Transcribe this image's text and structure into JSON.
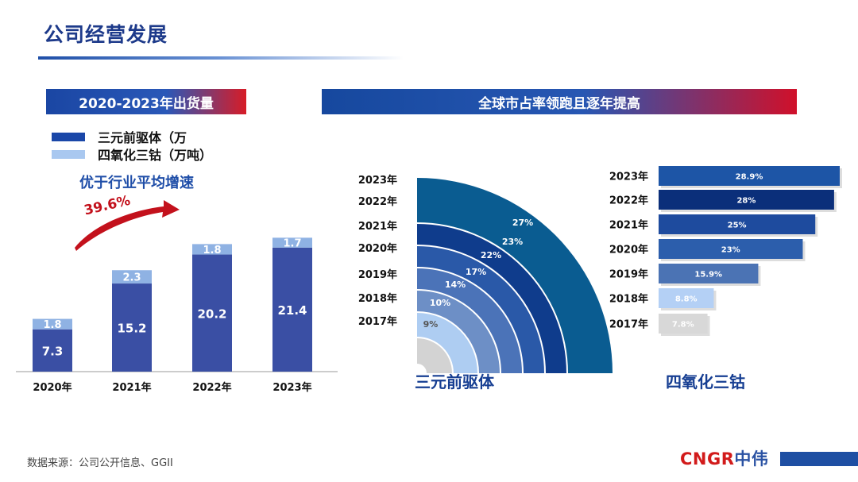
{
  "page": {
    "title": "公司经营发展",
    "source": "数据来源：公司公开信息、GGII",
    "logo_text": "CNGR",
    "logo_zh": "中伟"
  },
  "left_panel": {
    "banner": "2020-2023年出货量",
    "legend": [
      "三元前驱体（万",
      "四氧化三钴（万吨）"
    ],
    "growth_note": "优于行业平均增速",
    "growth_rate": "39.6%"
  },
  "right_panel": {
    "banner": "全球市占率领跑且逐年提高",
    "label_ncm": "三元前驱体",
    "label_co": "四氧化三钴"
  },
  "colors": {
    "ncm": "#3a4fa4",
    "co": "#8fb2e3",
    "accent_red": "#c3111c",
    "title_blue": "#1d3a8a"
  },
  "chart_data": [
    {
      "type": "bar",
      "stacked": true,
      "categories": [
        "2020年",
        "2021年",
        "2022年",
        "2023年"
      ],
      "series": [
        {
          "name": "三元前驱体（万",
          "values": [
            7.3,
            15.2,
            20.2,
            21.4
          ]
        },
        {
          "name": "四氧化三钴（万吨）",
          "values": [
            1.8,
            2.3,
            1.8,
            1.7
          ]
        }
      ],
      "ylim": [
        0,
        25
      ]
    },
    {
      "type": "pie",
      "series_name": "三元前驱体",
      "categories": [
        "2017年",
        "2018年",
        "2019年",
        "2020年",
        "2021年",
        "2022年",
        "2023年"
      ],
      "values": [
        9,
        10,
        14,
        17,
        22,
        23,
        27
      ],
      "labels": [
        "9%",
        "10%",
        "14%",
        "17%",
        "22%",
        "23%",
        "27%"
      ]
    },
    {
      "type": "bar",
      "orientation": "horizontal",
      "series_name": "四氧化三钴",
      "categories": [
        "2023年",
        "2022年",
        "2021年",
        "2020年",
        "2019年",
        "2018年",
        "2017年"
      ],
      "values": [
        28.9,
        28,
        25,
        23,
        15.9,
        8.8,
        7.8
      ],
      "labels": [
        "28.9%",
        "28%",
        "25%",
        "23%",
        "15.9%",
        "8.8%",
        "7.8%"
      ],
      "xlim": [
        0,
        28.9
      ]
    }
  ]
}
